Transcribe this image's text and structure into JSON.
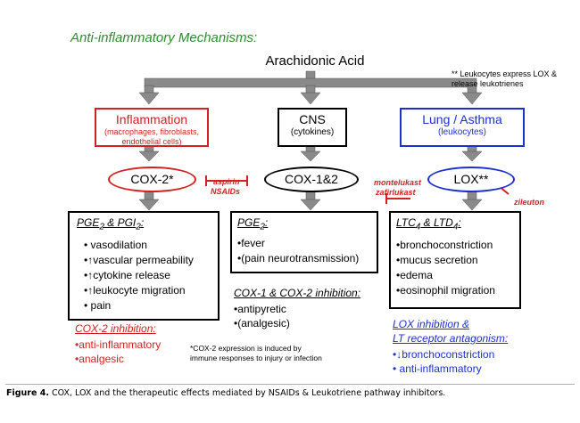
{
  "title": "Anti-inflammatory Mechanisms:",
  "source": "Arachidonic Acid",
  "note": "** Leukocytes express LOX & release leukotrienes",
  "categories": [
    {
      "label": "Inflammation",
      "sub": "(macrophages, fibroblasts, endothelial cells)",
      "color": "#d42020"
    },
    {
      "label": "CNS",
      "sub": "(cytokines)",
      "color": "#000000"
    },
    {
      "label": "Lung / Asthma",
      "sub": "(leukocytes)",
      "color": "#1c2fd0"
    }
  ],
  "enzymes": {
    "cox2": "COX-2*",
    "cox12": "COX-1&2",
    "lox": "LOX**"
  },
  "inhibitors": {
    "aspirin": "aspirin",
    "nsaids": "NSAIDs",
    "montelukast": "montelukast",
    "zafirlukast": "zafirlukast",
    "zileuton": "zileuton"
  },
  "effects": {
    "inflammation": {
      "items": [
        "vasodilation",
        "↑vascular permeability",
        "↑cytokine release",
        "↑leukocyte migration",
        "pain"
      ]
    },
    "cns": {
      "items": [
        "•fever",
        "•(pain neurotransmission)"
      ]
    },
    "lung": {
      "items": [
        "•bronchoconstriction",
        "•mucus secretion",
        "•edema",
        "•eosinophil migration"
      ]
    }
  },
  "sections": {
    "cox2": {
      "heading": "COX-2 inhibition:",
      "items": [
        "•anti-inflammatory",
        "•analgesic"
      ]
    },
    "cox12": {
      "heading": "COX-1 & COX-2 inhibition:",
      "items": [
        "•antipyretic",
        "•(analgesic)"
      ]
    },
    "lox": {
      "heading_line1": "LOX inhibition &",
      "heading_line2": "LT receptor antagonism:",
      "items": [
        "•↓bronchoconstriction",
        "• anti-inflammatory"
      ]
    }
  },
  "footnote": "*COX-2 expression is induced by immune responses to injury or infection",
  "caption": {
    "label": "Figure 4.",
    "text": "COX, LOX and the therapeutic effects mediated by NSAIDs & Leukotriene pathway inhibitors."
  },
  "colors": {
    "arrow": "#8a8a8a",
    "red": "#d42020",
    "blue": "#1c2fd0",
    "title": "#2e8b2e"
  }
}
